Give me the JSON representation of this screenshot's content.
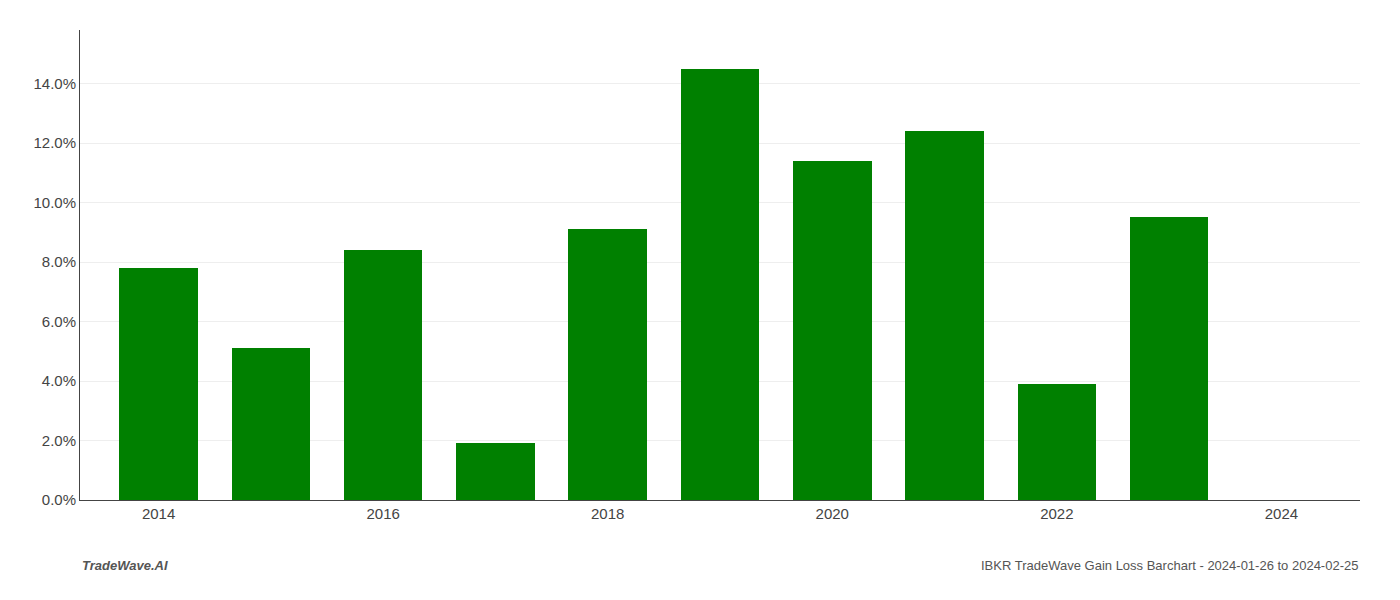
{
  "chart_data": {
    "type": "bar",
    "x": [
      2014,
      2015,
      2016,
      2017,
      2018,
      2019,
      2020,
      2021,
      2022,
      2023
    ],
    "values": [
      0.078,
      0.051,
      0.084,
      0.019,
      0.091,
      0.145,
      0.114,
      0.124,
      0.039,
      0.095
    ],
    "color": "#008000",
    "xlim": [
      2013.3,
      2024.7
    ],
    "xticks": [
      2014,
      2016,
      2018,
      2020,
      2022,
      2024
    ],
    "ylim": [
      0.0,
      0.158
    ],
    "yticks": [
      {
        "value": 0.0,
        "label": "0.0%"
      },
      {
        "value": 0.02,
        "label": "2.0%"
      },
      {
        "value": 0.04,
        "label": "4.0%"
      },
      {
        "value": 0.06,
        "label": "6.0%"
      },
      {
        "value": 0.08,
        "label": "8.0%"
      },
      {
        "value": 0.1,
        "label": "10.0%"
      },
      {
        "value": 0.12,
        "label": "12.0%"
      },
      {
        "value": 0.14,
        "label": "14.0%"
      }
    ],
    "grid": true,
    "annotations": [
      "TradeWave.AI",
      "IBKR TradeWave Gain Loss Barchart - 2024-01-26 to 2024-02-25"
    ]
  }
}
